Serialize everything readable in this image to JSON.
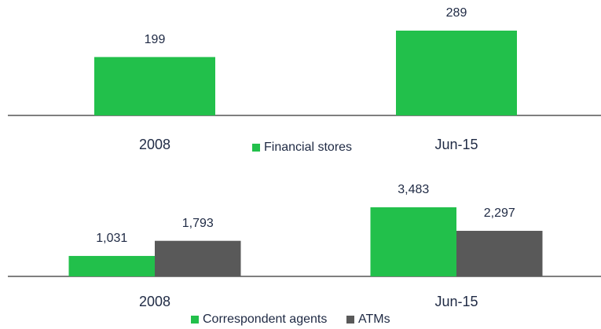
{
  "chart_data": [
    {
      "type": "bar",
      "categories": [
        "2008",
        "Jun-15"
      ],
      "series": [
        {
          "name": "Financial stores",
          "color": "#22c04b",
          "values": [
            199,
            289
          ]
        }
      ]
    },
    {
      "type": "bar",
      "categories": [
        "2008",
        "Jun-15"
      ],
      "series": [
        {
          "name": "Correspondent agents",
          "color": "#22c04b",
          "values": [
            1031,
            3483
          ],
          "value_labels": [
            "1,031",
            "3,483"
          ]
        },
        {
          "name": "ATMs",
          "color": "#595959",
          "values": [
            1793,
            2297
          ],
          "value_labels": [
            "1,793",
            "2,297"
          ]
        }
      ]
    }
  ]
}
